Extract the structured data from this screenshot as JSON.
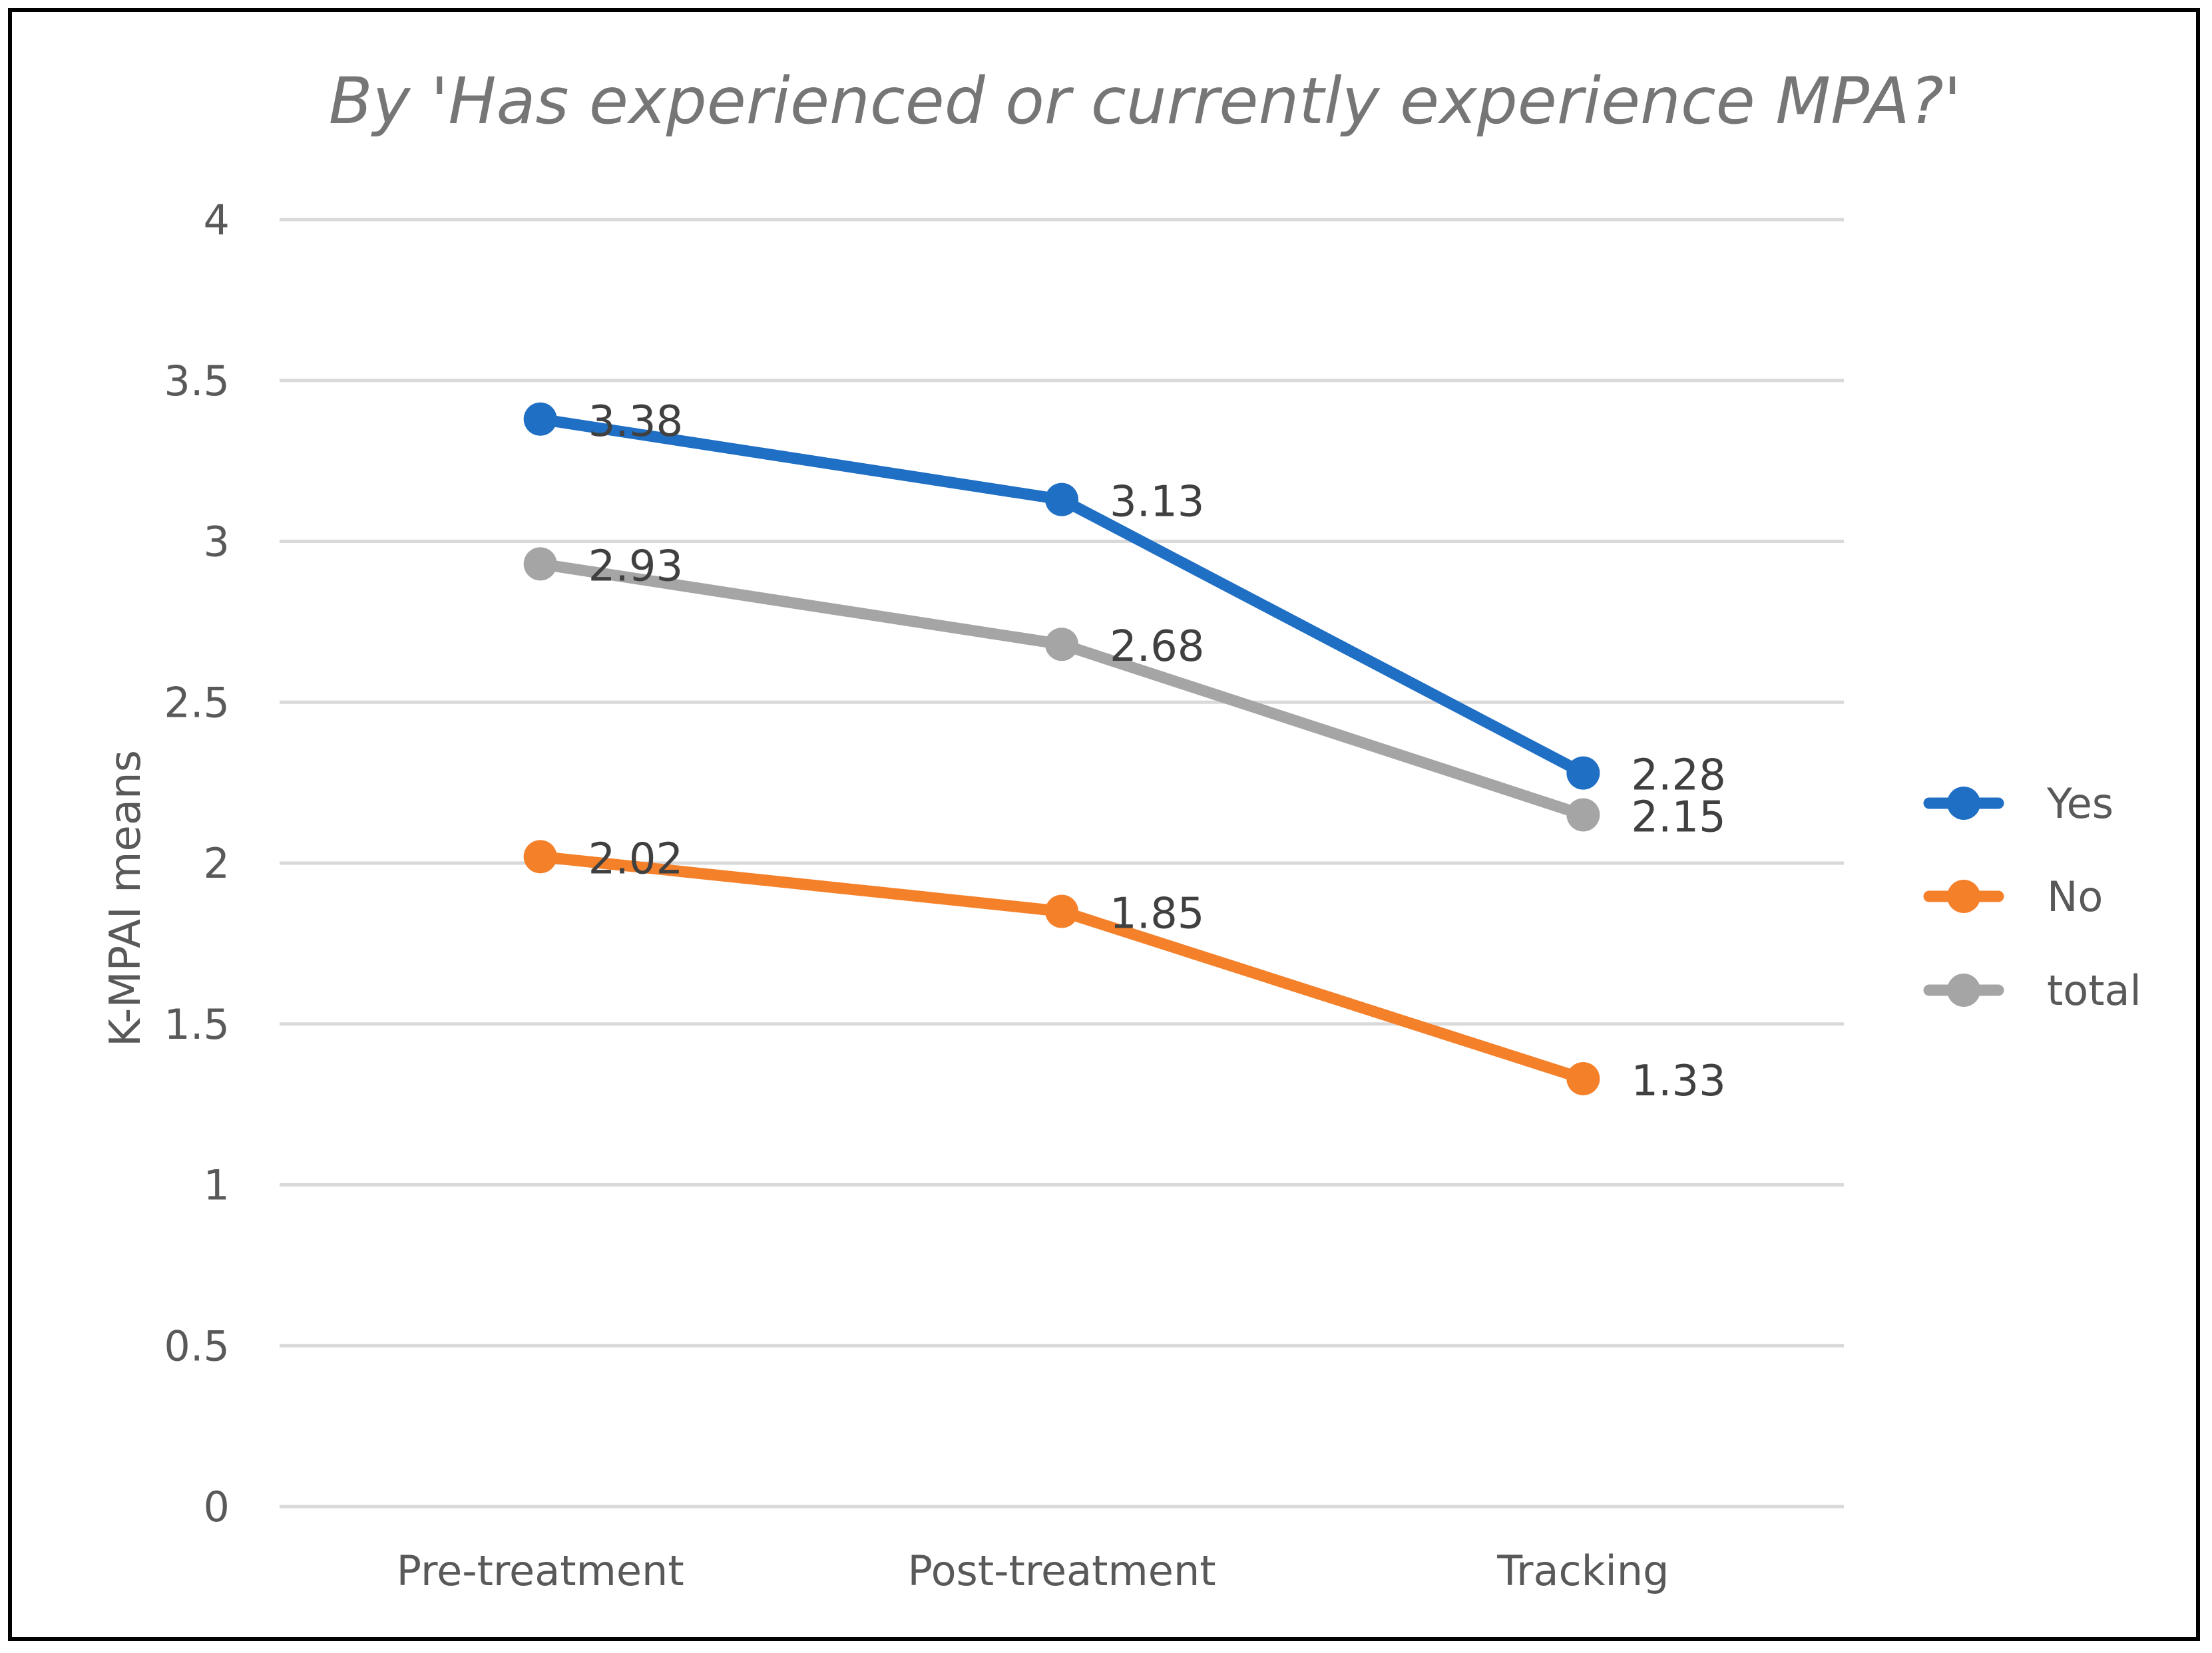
{
  "chart_data": {
    "type": "line",
    "title": "By 'Has experienced or currently experience MPA?'",
    "xlabel": "",
    "ylabel": "K-MPAI means",
    "categories": [
      "Pre-treatment",
      "Post-treatment",
      "Tracking"
    ],
    "ylim": [
      0,
      4
    ],
    "yticks": [
      0,
      0.5,
      1,
      1.5,
      2,
      2.5,
      3,
      3.5,
      4
    ],
    "ytick_labels": [
      "0",
      "0.5",
      "1",
      "1.5",
      "2",
      "2.5",
      "3",
      "3.5",
      "4"
    ],
    "grid": true,
    "legend": "right",
    "series": [
      {
        "name": "Yes",
        "color": "#1F6FC5",
        "values": [
          3.38,
          3.13,
          2.28
        ],
        "labels": [
          "3.38",
          "3.13",
          "2.28"
        ]
      },
      {
        "name": "No",
        "color": "#F5802A",
        "values": [
          2.02,
          1.85,
          1.33
        ],
        "labels": [
          "2.02",
          "1.85",
          "1.33"
        ]
      },
      {
        "name": "total",
        "color": "#A5A5A5",
        "values": [
          2.93,
          2.68,
          2.15
        ],
        "labels": [
          "2.93",
          "2.68",
          "2.15"
        ]
      }
    ],
    "gridline_color": "#D9D9D9"
  }
}
